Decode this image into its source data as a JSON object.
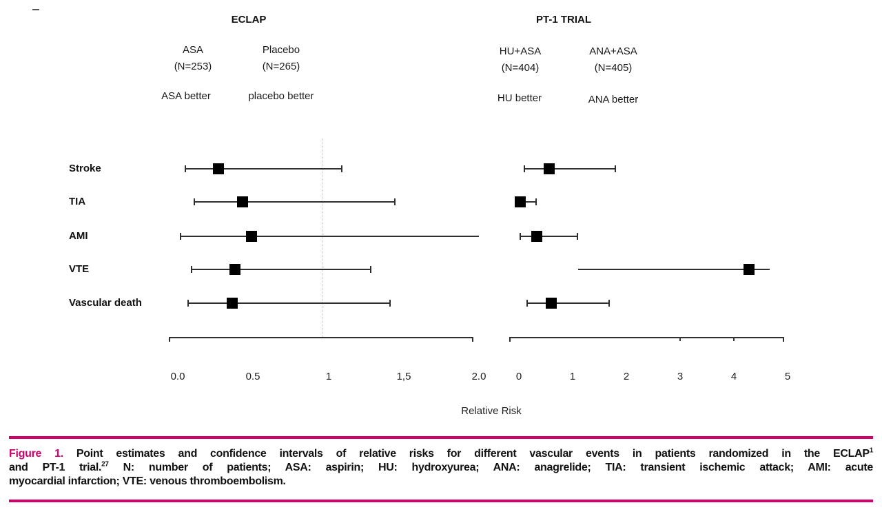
{
  "colors": {
    "accent_magenta": "#d2006b",
    "marker_black": "#000000",
    "line_dark": "#2f2f2f",
    "reference_dotted": "#dcb6b6"
  },
  "chart_data": {
    "type": "forest",
    "title": "",
    "xlabel": "Relative Risk",
    "rows": [
      "Stroke",
      "TIA",
      "AMI",
      "VTE",
      "Vascular death"
    ],
    "legend_position": "none",
    "grid": false,
    "panels": [
      {
        "trial": "ECLAP",
        "arm_left": {
          "name": "ASA",
          "n_label": "(N=253)",
          "better_label": "ASA better"
        },
        "arm_right": {
          "name": "Placebo",
          "n_label": "(N=265)",
          "better_label": "placebo better"
        },
        "xlim": [
          0,
          2
        ],
        "tick_values": [
          0,
          0.5,
          1,
          1.5,
          2
        ],
        "tick_labels": [
          "0.0",
          "0.5",
          "1",
          "1,5",
          "2.0"
        ],
        "reference_line_at": 1,
        "series": [
          {
            "row": "Stroke",
            "est": 0.27,
            "lo": 0.05,
            "hi": 1.09,
            "cap_lo": true,
            "cap_hi": true
          },
          {
            "row": "TIA",
            "est": 0.43,
            "lo": 0.11,
            "hi": 1.44,
            "cap_lo": true,
            "cap_hi": true
          },
          {
            "row": "AMI",
            "est": 0.49,
            "lo": 0.02,
            "hi": 2.0,
            "cap_lo": true,
            "cap_hi": false
          },
          {
            "row": "VTE",
            "est": 0.38,
            "lo": 0.09,
            "hi": 1.28,
            "cap_lo": true,
            "cap_hi": true
          },
          {
            "row": "Vascular death",
            "est": 0.36,
            "lo": 0.07,
            "hi": 1.41,
            "cap_lo": true,
            "cap_hi": true
          }
        ]
      },
      {
        "trial": "PT-1 TRIAL",
        "arm_left": {
          "name": "HU+ASA",
          "n_label": "(N=404)",
          "better_label": "HU better"
        },
        "arm_right": {
          "name": "ANA+ASA",
          "n_label": "(N=405)",
          "better_label": "ANA better"
        },
        "xlim": [
          0,
          5
        ],
        "tick_values": [
          0,
          1,
          2,
          3,
          4,
          5
        ],
        "tick_labels": [
          "0",
          "1",
          "2",
          "3",
          "4",
          "5"
        ],
        "inner_axis_ticks": [
          3,
          4
        ],
        "series": [
          {
            "row": "Stroke",
            "est": 0.56,
            "lo": 0.1,
            "hi": 1.8,
            "cap_lo": true,
            "cap_hi": true
          },
          {
            "row": "TIA",
            "est": 0.03,
            "lo": 0.0,
            "hi": 0.32,
            "cap_lo": false,
            "cap_hi": true
          },
          {
            "row": "AMI",
            "est": 0.33,
            "lo": 0.03,
            "hi": 1.09,
            "cap_lo": true,
            "cap_hi": true
          },
          {
            "row": "VTE",
            "est": 4.28,
            "lo": 1.1,
            "hi": 4.67,
            "cap_lo": false,
            "cap_hi": false
          },
          {
            "row": "Vascular death",
            "est": 0.6,
            "lo": 0.15,
            "hi": 1.68,
            "cap_lo": true,
            "cap_hi": true
          }
        ]
      }
    ]
  },
  "caption": {
    "figure_label": "Figure 1.",
    "line1": " Point estimates and confidence intervals of relative risks for different vascular events in patients randomized in the ECLAP",
    "line1_sup": "1",
    "line2_pre": "and PT-1 trial.",
    "line2_sup": "27",
    "line2_post": " N: number of patients; ASA: aspirin; HU: hydroxyurea; ANA: anagrelide; TIA: transient ischemic attack; AMI: acute",
    "line3": "myocardial infarction; VTE: venous thromboembolism."
  }
}
